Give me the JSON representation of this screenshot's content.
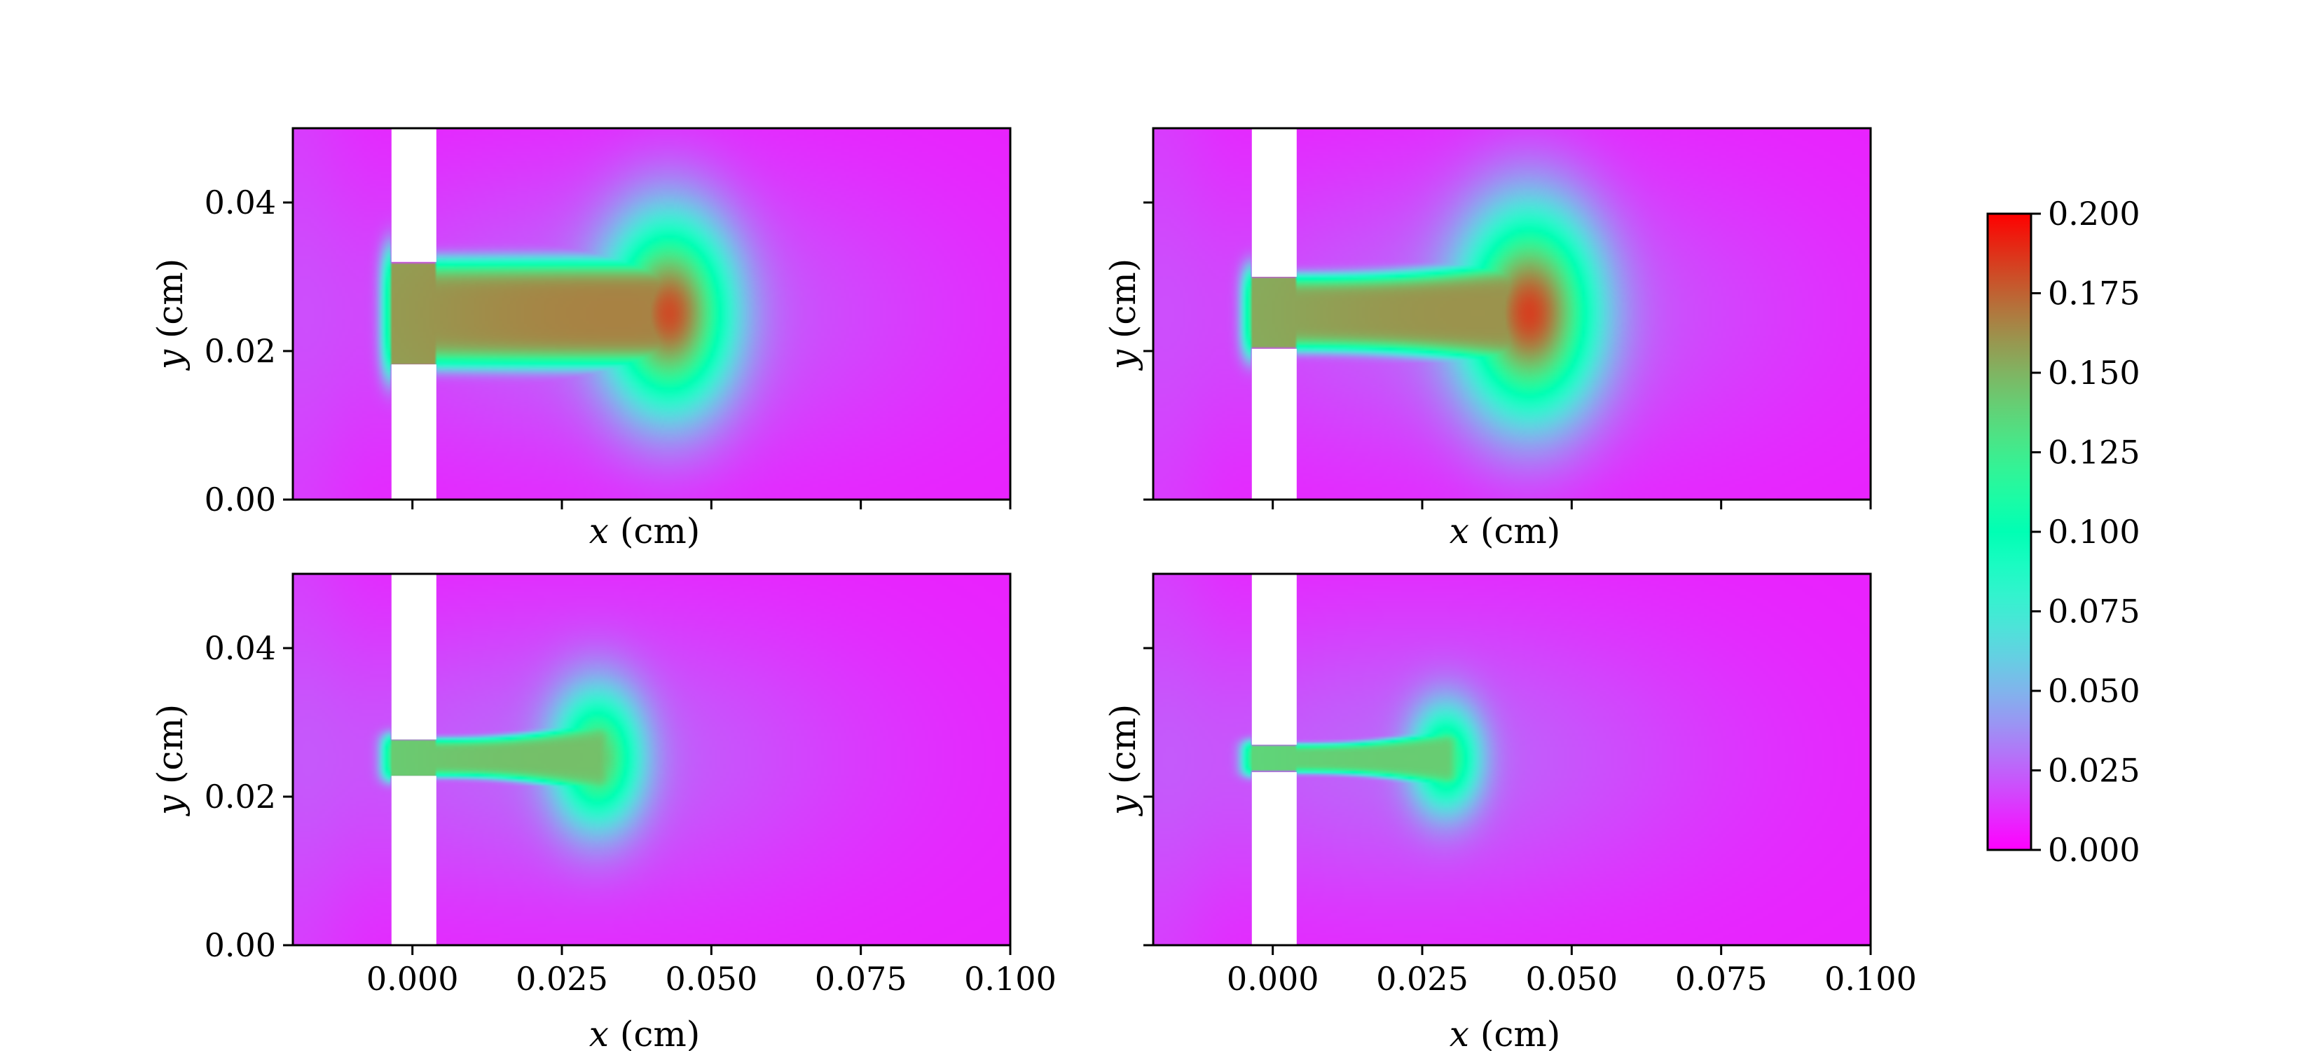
{
  "chart_data": {
    "type": "heatmap",
    "colormap": "rainbow",
    "colorbar": {
      "vmin": 0.0,
      "vmax": 0.2,
      "ticks": [
        "0.000",
        "0.025",
        "0.050",
        "0.075",
        "0.100",
        "0.125",
        "0.150",
        "0.175",
        "0.200"
      ]
    },
    "xlim": [
      -0.02,
      0.1
    ],
    "ylim": [
      0.0,
      0.05
    ],
    "xticks": [
      "0.000",
      "0.025",
      "0.050",
      "0.075",
      "0.100"
    ],
    "yticks": [
      "0.00",
      "0.02",
      "0.04"
    ],
    "xlabel_var": "x",
    "xlabel_unit": " (cm)",
    "ylabel_var": "y",
    "ylabel_unit": " (cm)",
    "wall": {
      "x_from": -0.0035,
      "x_to": 0.004
    },
    "panels": [
      {
        "slit_y": [
          0.0182,
          0.032
        ],
        "jet": {
          "head_x": 0.043,
          "head_value": 0.155,
          "head_width": 0.0125,
          "jet_value": 0.14
        }
      },
      {
        "slit_y": [
          0.0203,
          0.03
        ],
        "jet": {
          "head_x": 0.043,
          "head_value": 0.158,
          "head_width": 0.0135,
          "jet_value": 0.135
        }
      },
      {
        "slit_y": [
          0.0228,
          0.0277
        ],
        "jet": {
          "head_x": 0.031,
          "head_value": 0.118,
          "head_width": 0.009,
          "jet_value": 0.12
        }
      },
      {
        "slit_y": [
          0.0233,
          0.027
        ],
        "jet": {
          "head_x": 0.029,
          "head_value": 0.105,
          "head_width": 0.007,
          "jet_value": 0.115
        }
      }
    ]
  }
}
